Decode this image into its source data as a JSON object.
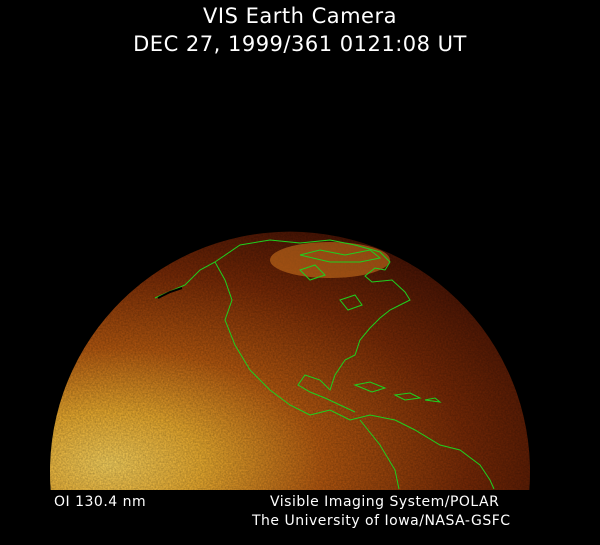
{
  "header": {
    "title": "VIS Earth Camera",
    "timestamp": "DEC 27, 1999/361 0121:08 UT"
  },
  "footer": {
    "filter": "OI  130.4 nm",
    "instrument": "Visible Imaging System/POLAR",
    "institution": "The University of Iowa/NASA-GSFC"
  },
  "image": {
    "colors": {
      "bright": "#f5c040",
      "mid": "#b85a10",
      "dark": "#4a1404",
      "coastline": "#1fd01f",
      "background": "#000000"
    }
  }
}
